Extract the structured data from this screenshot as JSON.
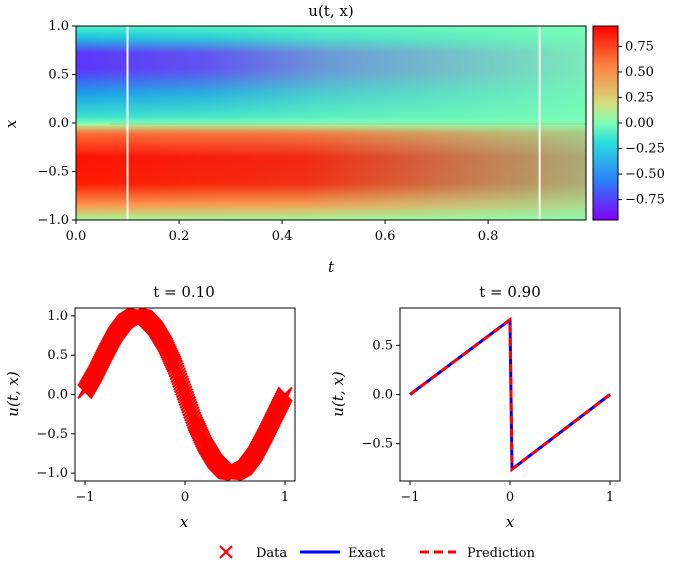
{
  "chart_data": [
    {
      "type": "heatmap",
      "title": "u(t, x)",
      "xlabel": "t",
      "ylabel": "x",
      "xlim": [
        0.0,
        0.99
      ],
      "ylim": [
        -1.0,
        1.0
      ],
      "xticks": [
        "0.0",
        "0.2",
        "0.4",
        "0.6",
        "0.8"
      ],
      "yticks": [
        "1.0",
        "0.5",
        "0.0",
        "−0.5",
        "−1.0"
      ],
      "colormap": "rainbow",
      "colorbar": {
        "range": [
          -0.95,
          0.95
        ],
        "ticks": [
          "0.75",
          "0.50",
          "0.25",
          "0.00",
          "−0.25",
          "−0.50",
          "−0.75"
        ]
      },
      "vertical_lines_t": [
        0.1,
        0.9
      ],
      "vertical_line_color": "#ffffff"
    },
    {
      "type": "line",
      "title": "t = 0.10",
      "xlabel": "x",
      "ylabel": "u(t, x)",
      "xlim": [
        -1.1,
        1.1
      ],
      "ylim": [
        -1.1,
        1.1
      ],
      "xticks": [
        "−1",
        "0",
        "1"
      ],
      "yticks": [
        "1.0",
        "0.5",
        "0.0",
        "−0.5",
        "−1.0"
      ],
      "series": [
        {
          "name": "Data",
          "style": "x-markers",
          "color": "#ff0000",
          "x": [
            -1.0,
            -0.9,
            -0.8,
            -0.7,
            -0.6,
            -0.5,
            -0.4,
            -0.3,
            -0.2,
            -0.1,
            0.0,
            0.1,
            0.2,
            0.3,
            0.4,
            0.5,
            0.6,
            0.7,
            0.8,
            0.9,
            1.0
          ],
          "y": [
            0.04,
            0.26,
            0.52,
            0.76,
            0.93,
            1.01,
            0.98,
            0.85,
            0.64,
            0.36,
            0.0,
            -0.36,
            -0.64,
            -0.85,
            -0.98,
            -1.0,
            -0.93,
            -0.76,
            -0.52,
            -0.26,
            0.0
          ]
        }
      ]
    },
    {
      "type": "line",
      "title": "t = 0.90",
      "xlabel": "x",
      "ylabel": "u(t, x)",
      "xlim": [
        -1.1,
        1.1
      ],
      "ylim": [
        -0.88,
        0.88
      ],
      "xticks": [
        "−1",
        "0",
        "1"
      ],
      "yticks": [
        "0.5",
        "0.0",
        "−0.5"
      ],
      "series": [
        {
          "name": "Exact",
          "style": "solid",
          "color": "#0000ff",
          "x": [
            -1.0,
            0.0,
            0.02,
            1.0
          ],
          "y": [
            0.0,
            0.76,
            -0.76,
            0.0
          ]
        },
        {
          "name": "Prediction",
          "style": "dashed",
          "color": "#ff0000",
          "x": [
            -1.0,
            0.0,
            0.02,
            1.0
          ],
          "y": [
            0.0,
            0.76,
            -0.76,
            0.0
          ]
        }
      ]
    }
  ],
  "legend": {
    "position": "bottom-center",
    "entries": [
      {
        "label": "Data",
        "style": "x-marker",
        "color": "#ff0000"
      },
      {
        "label": "Exact",
        "style": "solid",
        "color": "#0000ff"
      },
      {
        "label": "Prediction",
        "style": "dashed",
        "color": "#ff0000"
      }
    ]
  }
}
